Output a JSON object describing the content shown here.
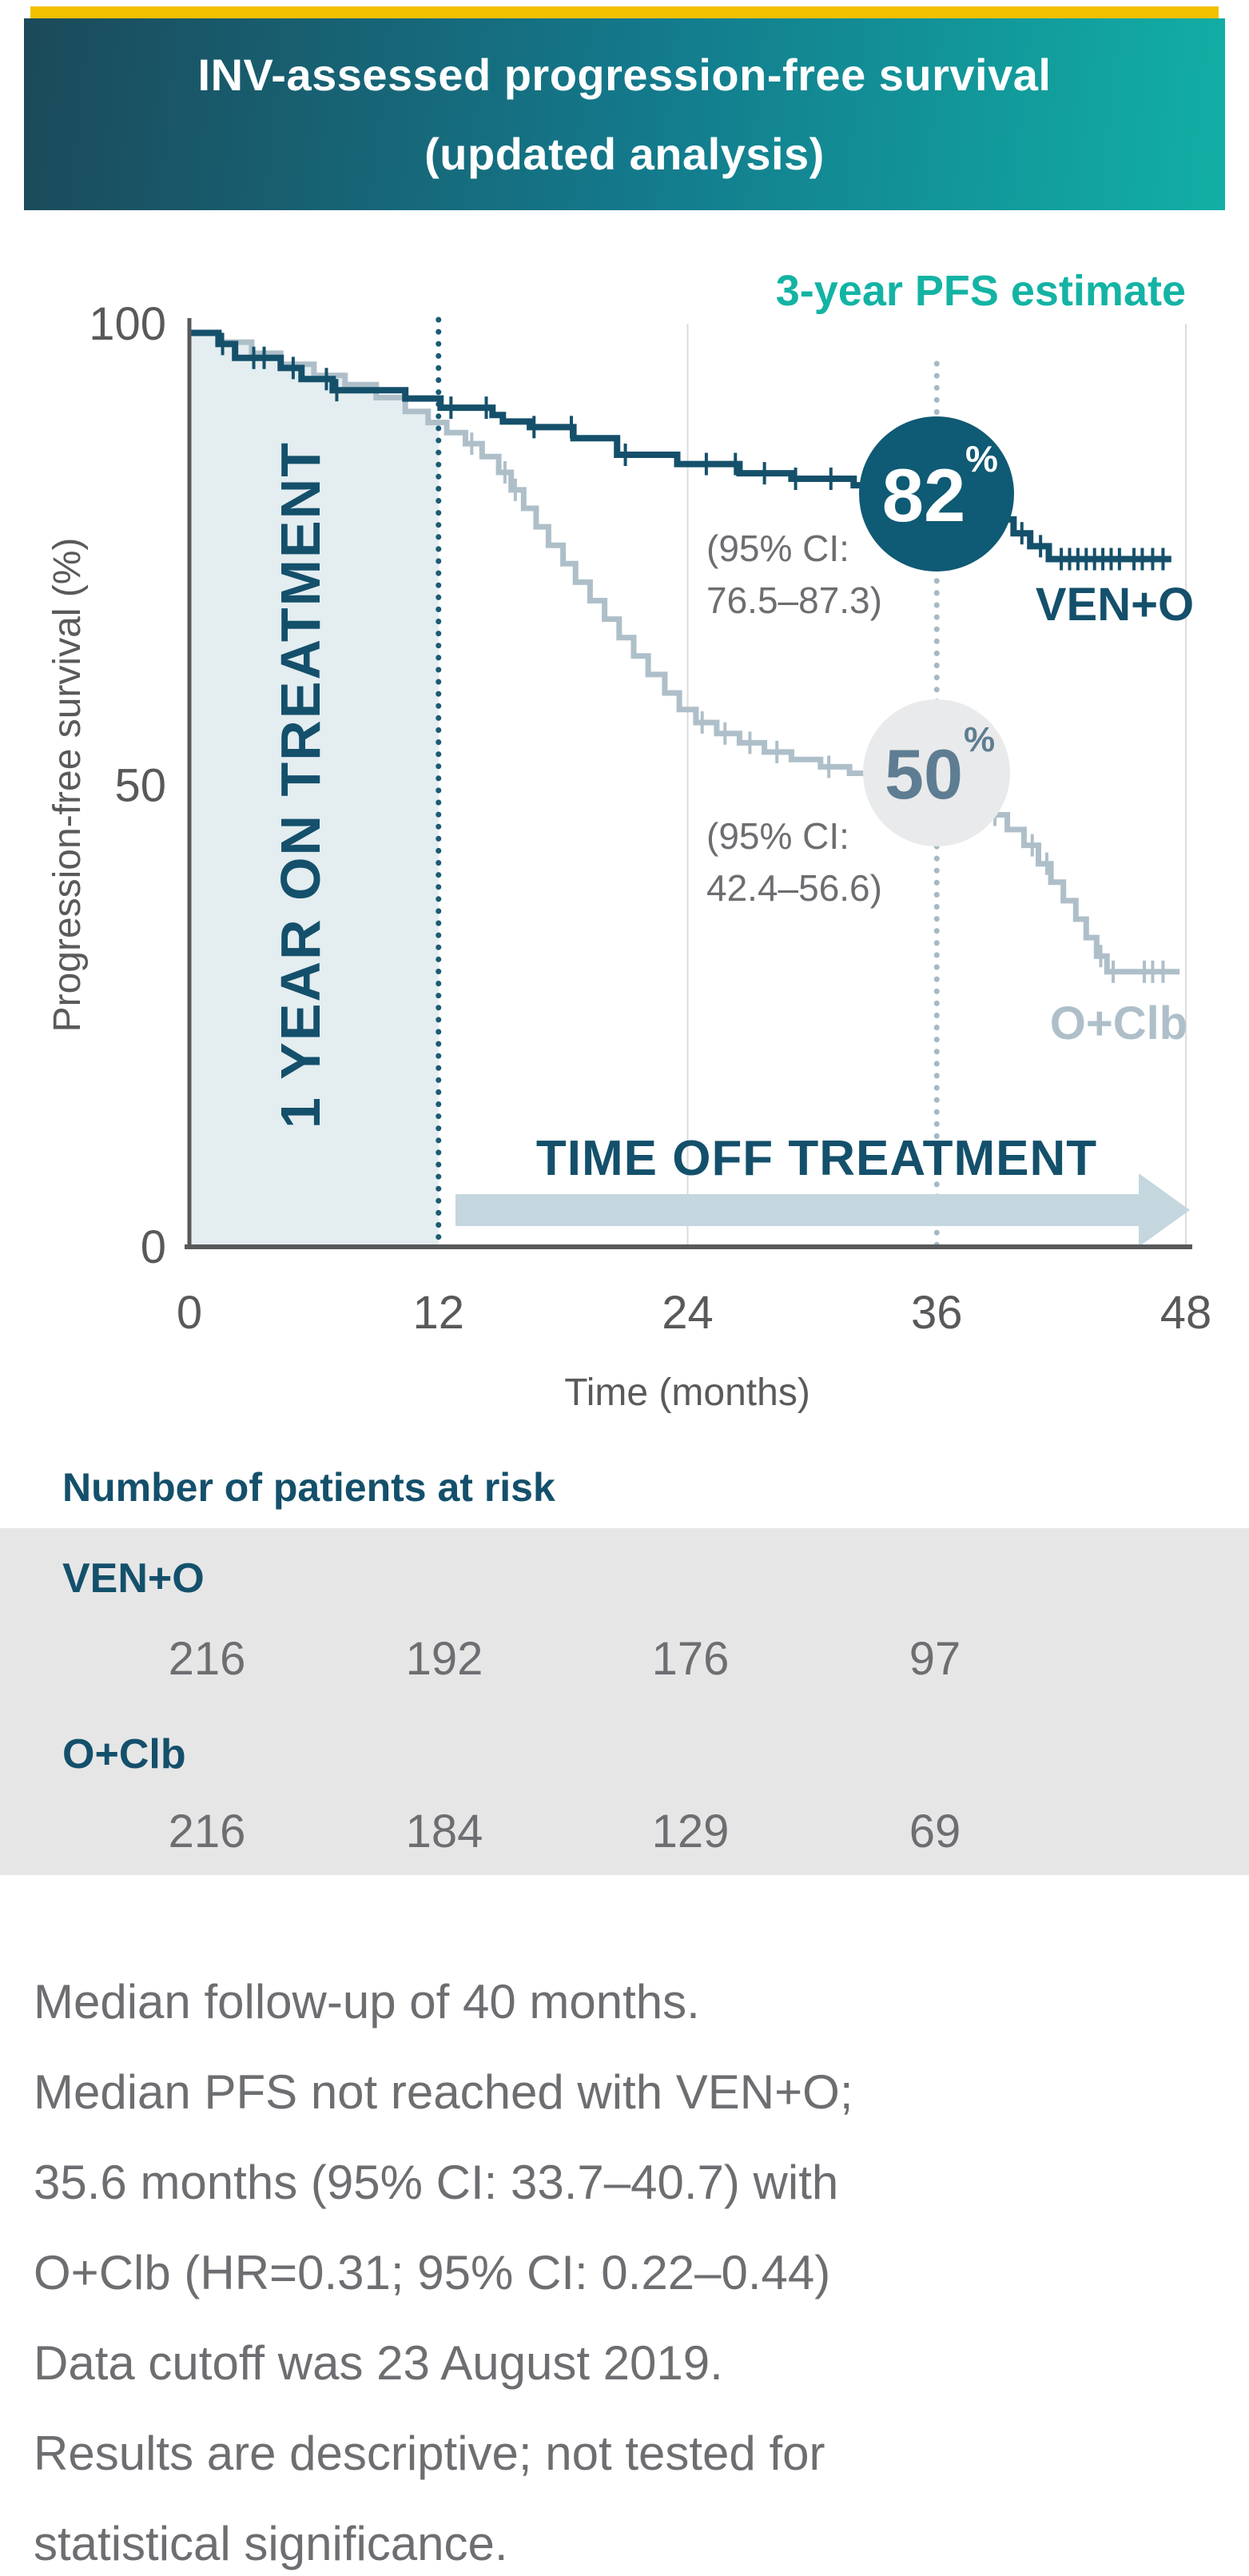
{
  "header": {
    "accent_bar_color": "#F3C000",
    "gradient_left": "#1B4A5A",
    "gradient_right": "#12AFA5",
    "title_line1": "INV-assessed progression-free survival",
    "title_line2": "(updated analysis)"
  },
  "chart": {
    "annotation_heading": "3-year PFS estimate",
    "on_treatment_label": "1 YEAR ON TREATMENT",
    "off_treatment_label": "TIME OFF TREATMENT",
    "ven_o_callout": {
      "value": "82",
      "percent_sign": "%",
      "ci_line1": "(95% CI:",
      "ci_line2": "76.5–87.3)",
      "series_label": "VEN+O",
      "circle_color": "#0F5A74",
      "value_color": "#FFFFFF"
    },
    "o_clb_callout": {
      "value": "50",
      "percent_sign": "%",
      "ci_line1": "(95% CI:",
      "ci_line2": "42.4–56.6)",
      "series_label": "O+Clb",
      "circle_color": "#E9EAEB",
      "value_color": "#5E7D92"
    }
  },
  "chart_data": {
    "type": "line",
    "subtype": "kaplan-meier-step",
    "title": "INV-assessed progression-free survival (updated analysis)",
    "xlabel": "Time (months)",
    "ylabel": "Progression-free survival (%)",
    "xlim": [
      0,
      48
    ],
    "ylim": [
      0,
      100
    ],
    "x_ticks": [
      0,
      12,
      24,
      36,
      48
    ],
    "y_ticks": [
      100,
      50,
      0
    ],
    "grid": "minimal",
    "legend_position": "on-curve",
    "shaded_region": {
      "from_month": 0,
      "to_month": 12,
      "color": "#E4EDF0"
    },
    "reference_lines": [
      {
        "month": 12,
        "style": "dotted",
        "color": "#1A5B74"
      },
      {
        "month": 36,
        "style": "dotted",
        "color": "#A5B9C5"
      }
    ],
    "series": [
      {
        "name": "VEN+O",
        "color": "#15506B",
        "three_year_pfs_pct": 82,
        "ci_95": "76.5–87.3",
        "steps": [
          [
            0,
            99
          ],
          [
            1.4,
            99
          ],
          [
            1.4,
            97.8
          ],
          [
            2.2,
            97.8
          ],
          [
            2.2,
            96.3
          ],
          [
            4.4,
            96.3
          ],
          [
            4.4,
            95.2
          ],
          [
            5.4,
            95.2
          ],
          [
            5.4,
            94.0
          ],
          [
            6.9,
            94.0
          ],
          [
            6.9,
            92.8
          ],
          [
            10.4,
            92.8
          ],
          [
            10.4,
            91.9
          ],
          [
            12.1,
            91.9
          ],
          [
            12.1,
            90.9
          ],
          [
            14.6,
            90.9
          ],
          [
            14.6,
            90.1
          ],
          [
            15.1,
            90.1
          ],
          [
            15.1,
            89.4
          ],
          [
            16.4,
            89.4
          ],
          [
            16.4,
            88.8
          ],
          [
            18.5,
            88.8
          ],
          [
            18.5,
            87.6
          ],
          [
            20.6,
            87.6
          ],
          [
            20.6,
            85.8
          ],
          [
            23.5,
            85.8
          ],
          [
            23.5,
            84.8
          ],
          [
            26.5,
            84.8
          ],
          [
            26.5,
            83.8
          ],
          [
            29.0,
            83.8
          ],
          [
            29.0,
            83.2
          ],
          [
            32.0,
            83.2
          ],
          [
            32.0,
            82.5
          ],
          [
            34.5,
            82.5
          ],
          [
            34.5,
            82.0
          ],
          [
            37.3,
            82.0
          ],
          [
            37.3,
            80.3
          ],
          [
            38.6,
            80.3
          ],
          [
            38.6,
            78.8
          ],
          [
            39.7,
            78.8
          ],
          [
            39.7,
            77.3
          ],
          [
            40.5,
            77.3
          ],
          [
            40.5,
            75.9
          ],
          [
            41.4,
            75.9
          ],
          [
            41.4,
            74.5
          ],
          [
            47.3,
            74.5
          ]
        ],
        "censor_times": [
          1.6,
          3.1,
          3.6,
          5.0,
          6.6,
          7.1,
          12.6,
          14.3,
          16.6,
          18.4,
          21.0,
          24.9,
          26.3,
          27.7,
          29.2,
          30.9,
          33.2,
          38.2,
          39.2,
          40.1,
          41.0,
          42.0,
          42.4,
          42.8,
          43.2,
          43.6,
          44.0,
          44.4,
          44.8,
          45.5,
          45.9,
          46.4,
          46.9
        ]
      },
      {
        "name": "O+Clb",
        "color": "#AEBFC9",
        "three_year_pfs_pct": 50,
        "ci_95": "42.4–56.6",
        "steps": [
          [
            0,
            99
          ],
          [
            1.4,
            99
          ],
          [
            1.4,
            98.0
          ],
          [
            3.0,
            98.0
          ],
          [
            3.0,
            96.8
          ],
          [
            4.4,
            96.8
          ],
          [
            4.4,
            95.6
          ],
          [
            6.0,
            95.6
          ],
          [
            6.0,
            94.4
          ],
          [
            7.5,
            94.4
          ],
          [
            7.5,
            93.4
          ],
          [
            9.0,
            93.4
          ],
          [
            9.0,
            92.0
          ],
          [
            10.4,
            92.0
          ],
          [
            10.4,
            90.5
          ],
          [
            11.5,
            90.5
          ],
          [
            11.5,
            89.3
          ],
          [
            12.4,
            89.3
          ],
          [
            12.4,
            88.2
          ],
          [
            13.3,
            88.2
          ],
          [
            13.3,
            87.0
          ],
          [
            14.1,
            87.0
          ],
          [
            14.1,
            85.6
          ],
          [
            14.9,
            85.6
          ],
          [
            14.9,
            83.9
          ],
          [
            15.5,
            83.9
          ],
          [
            15.5,
            82.0
          ],
          [
            16.1,
            82.0
          ],
          [
            16.1,
            80.0
          ],
          [
            16.7,
            80.0
          ],
          [
            16.7,
            78.0
          ],
          [
            17.3,
            78.0
          ],
          [
            17.3,
            76.0
          ],
          [
            18.0,
            76.0
          ],
          [
            18.0,
            74.0
          ],
          [
            18.6,
            74.0
          ],
          [
            18.6,
            72.0
          ],
          [
            19.3,
            72.0
          ],
          [
            19.3,
            70.0
          ],
          [
            20.0,
            70.0
          ],
          [
            20.0,
            68.0
          ],
          [
            20.7,
            68.0
          ],
          [
            20.7,
            66.0
          ],
          [
            21.4,
            66.0
          ],
          [
            21.4,
            64.0
          ],
          [
            22.1,
            64.0
          ],
          [
            22.1,
            62.0
          ],
          [
            22.9,
            62.0
          ],
          [
            22.9,
            60.0
          ],
          [
            23.6,
            60.0
          ],
          [
            23.6,
            58.2
          ],
          [
            24.4,
            58.2
          ],
          [
            24.4,
            56.8
          ],
          [
            25.4,
            56.8
          ],
          [
            25.4,
            55.6
          ],
          [
            26.5,
            55.6
          ],
          [
            26.5,
            54.6
          ],
          [
            27.7,
            54.6
          ],
          [
            27.7,
            53.6
          ],
          [
            29.0,
            53.6
          ],
          [
            29.0,
            52.8
          ],
          [
            30.4,
            52.8
          ],
          [
            30.4,
            52.0
          ],
          [
            31.8,
            52.0
          ],
          [
            31.8,
            51.3
          ],
          [
            33.2,
            51.3
          ],
          [
            33.2,
            50.6
          ],
          [
            34.6,
            50.6
          ],
          [
            34.6,
            50.0
          ],
          [
            36.5,
            50.0
          ],
          [
            36.5,
            49.0
          ],
          [
            37.5,
            49.0
          ],
          [
            37.5,
            48.0
          ],
          [
            38.5,
            48.0
          ],
          [
            38.5,
            46.8
          ],
          [
            39.4,
            46.8
          ],
          [
            39.4,
            45.2
          ],
          [
            40.2,
            45.2
          ],
          [
            40.2,
            43.5
          ],
          [
            40.9,
            43.5
          ],
          [
            40.9,
            41.5
          ],
          [
            41.5,
            41.5
          ],
          [
            41.5,
            39.5
          ],
          [
            42.1,
            39.5
          ],
          [
            42.1,
            37.5
          ],
          [
            42.7,
            37.5
          ],
          [
            42.7,
            35.5
          ],
          [
            43.2,
            35.5
          ],
          [
            43.2,
            33.5
          ],
          [
            43.7,
            33.5
          ],
          [
            43.7,
            31.5
          ],
          [
            44.2,
            31.5
          ],
          [
            44.2,
            29.8
          ],
          [
            47.7,
            29.8
          ]
        ],
        "censor_times": [
          13.6,
          15.2,
          15.7,
          24.7,
          25.8,
          27.0,
          28.3,
          30.8,
          33.5,
          37.8,
          38.8,
          40.6,
          41.3,
          43.9,
          44.5,
          46.0,
          46.4,
          46.9
        ]
      }
    ]
  },
  "risk_table": {
    "heading": "Number of patients at risk",
    "time_points": [
      0,
      12,
      24,
      36
    ],
    "rows": [
      {
        "label": "VEN+O",
        "values": [
          "216",
          "192",
          "176",
          "97"
        ]
      },
      {
        "label": "O+Clb",
        "values": [
          "216",
          "184",
          "129",
          "69"
        ]
      }
    ]
  },
  "footnote_lines": [
    "Median follow-up of 40 months.",
    "Median PFS not reached with VEN+O;",
    "35.6 months (95% CI: 33.7–40.7) with",
    "O+Clb (HR=0.31; 95% CI: 0.22–0.44)",
    "Data cutoff was 23 August 2019.",
    "Results are descriptive; not tested for",
    "statistical significance."
  ]
}
